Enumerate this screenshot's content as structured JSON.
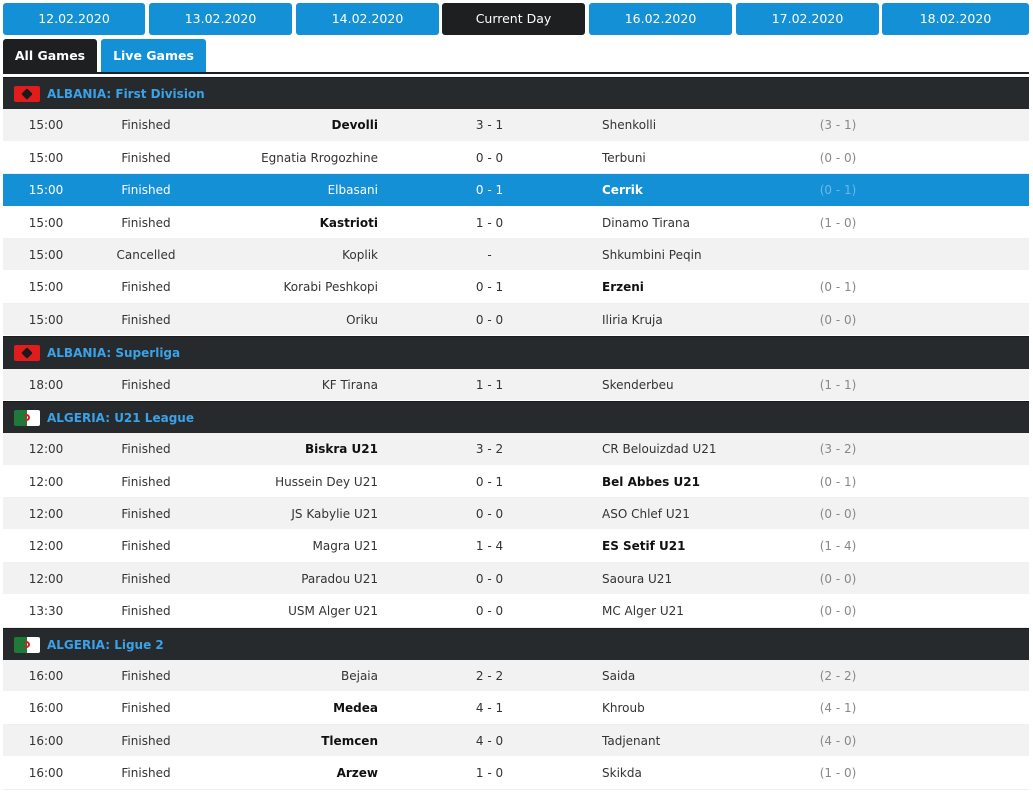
{
  "dates": [
    "12.02.2020",
    "13.02.2020",
    "14.02.2020",
    "Current Day",
    "16.02.2020",
    "17.02.2020",
    "18.02.2020"
  ],
  "current_index": 3,
  "tabs": {
    "all_games": "All Games",
    "live_games": "Live Games"
  },
  "colors": {
    "accent_blue": "#1390d6",
    "dark": "#1e1f21",
    "league_text": "#3aa2e8"
  },
  "leagues": [
    {
      "country": "ALBANIA:",
      "name": "First Division",
      "flag": "albania-flag-icon",
      "matches": [
        {
          "time": "15:00",
          "status": "Finished",
          "home": "Devolli",
          "score": "3 - 1",
          "away": "Shenkolli",
          "ht": "(3 - 1)",
          "winner": "home"
        },
        {
          "time": "15:00",
          "status": "Finished",
          "home": "Egnatia Rrogozhine",
          "score": "0 - 0",
          "away": "Terbuni",
          "ht": "(0 - 0)",
          "winner": ""
        },
        {
          "time": "15:00",
          "status": "Finished",
          "home": "Elbasani",
          "score": "0 - 1",
          "away": "Cerrik",
          "ht": "(0 - 1)",
          "winner": "away",
          "selected": true
        },
        {
          "time": "15:00",
          "status": "Finished",
          "home": "Kastrioti",
          "score": "1 - 0",
          "away": "Dinamo Tirana",
          "ht": "(1 - 0)",
          "winner": "home"
        },
        {
          "time": "15:00",
          "status": "Cancelled",
          "home": "Koplik",
          "score": "-",
          "away": "Shkumbini Peqin",
          "ht": "",
          "winner": ""
        },
        {
          "time": "15:00",
          "status": "Finished",
          "home": "Korabi Peshkopi",
          "score": "0 - 1",
          "away": "Erzeni",
          "ht": "(0 - 1)",
          "winner": "away"
        },
        {
          "time": "15:00",
          "status": "Finished",
          "home": "Oriku",
          "score": "0 - 0",
          "away": "Iliria Kruja",
          "ht": "(0 - 0)",
          "winner": ""
        }
      ]
    },
    {
      "country": "ALBANIA:",
      "name": "Superliga",
      "flag": "albania-flag-icon",
      "matches": [
        {
          "time": "18:00",
          "status": "Finished",
          "home": "KF Tirana",
          "score": "1 - 1",
          "away": "Skenderbeu",
          "ht": "(1 - 1)",
          "winner": ""
        }
      ]
    },
    {
      "country": "ALGERIA:",
      "name": "U21 League",
      "flag": "algeria-flag-icon",
      "matches": [
        {
          "time": "12:00",
          "status": "Finished",
          "home": "Biskra U21",
          "score": "3 - 2",
          "away": "CR Belouizdad U21",
          "ht": "(3 - 2)",
          "winner": "home"
        },
        {
          "time": "12:00",
          "status": "Finished",
          "home": "Hussein Dey U21",
          "score": "0 - 1",
          "away": "Bel Abbes U21",
          "ht": "(0 - 1)",
          "winner": "away"
        },
        {
          "time": "12:00",
          "status": "Finished",
          "home": "JS Kabylie U21",
          "score": "0 - 0",
          "away": "ASO Chlef U21",
          "ht": "(0 - 0)",
          "winner": ""
        },
        {
          "time": "12:00",
          "status": "Finished",
          "home": "Magra U21",
          "score": "1 - 4",
          "away": "ES Setif U21",
          "ht": "(1 - 4)",
          "winner": "away"
        },
        {
          "time": "12:00",
          "status": "Finished",
          "home": "Paradou U21",
          "score": "0 - 0",
          "away": "Saoura U21",
          "ht": "(0 - 0)",
          "winner": ""
        },
        {
          "time": "13:30",
          "status": "Finished",
          "home": "USM Alger U21",
          "score": "0 - 0",
          "away": "MC Alger U21",
          "ht": "(0 - 0)",
          "winner": ""
        }
      ]
    },
    {
      "country": "ALGERIA:",
      "name": "Ligue 2",
      "flag": "algeria-flag-icon",
      "matches": [
        {
          "time": "16:00",
          "status": "Finished",
          "home": "Bejaia",
          "score": "2 - 2",
          "away": "Saida",
          "ht": "(2 - 2)",
          "winner": ""
        },
        {
          "time": "16:00",
          "status": "Finished",
          "home": "Medea",
          "score": "4 - 1",
          "away": "Khroub",
          "ht": "(4 - 1)",
          "winner": "home"
        },
        {
          "time": "16:00",
          "status": "Finished",
          "home": "Tlemcen",
          "score": "4 - 0",
          "away": "Tadjenant",
          "ht": "(4 - 0)",
          "winner": "home"
        },
        {
          "time": "16:00",
          "status": "Finished",
          "home": "Arzew",
          "score": "1 - 0",
          "away": "Skikda",
          "ht": "(1 - 0)",
          "winner": "home"
        }
      ]
    }
  ]
}
